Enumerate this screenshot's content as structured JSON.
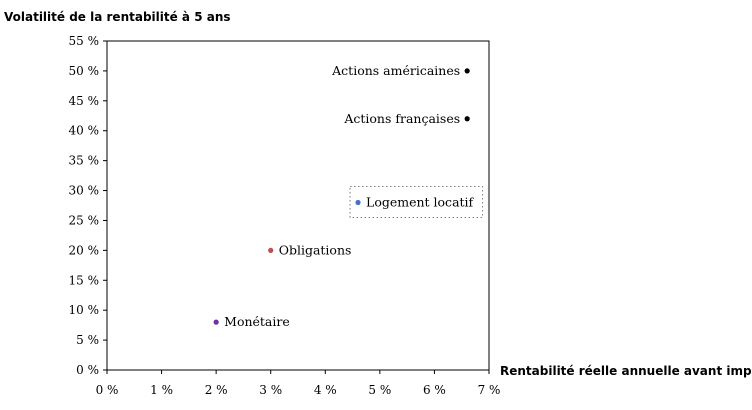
{
  "chart_data": {
    "type": "scatter",
    "ylabel": "Volatilité  de la rentabilité  à 5 ans",
    "xlabel": "Rentabilité  réelle annuelle avant impôts",
    "xlim": [
      0,
      7
    ],
    "ylim": [
      0,
      55
    ],
    "x_ticks": [
      0,
      1,
      2,
      3,
      4,
      5,
      6,
      7
    ],
    "y_ticks": [
      0,
      5,
      10,
      15,
      20,
      25,
      30,
      35,
      40,
      45,
      50,
      55
    ],
    "x_tick_labels": [
      "0 %",
      "1 %",
      "2 %",
      "3 %",
      "4 %",
      "5 %",
      "6 %",
      "7 %"
    ],
    "y_tick_labels": [
      "0 %",
      "5 %",
      "10 %",
      "15 %",
      "20 %",
      "25 %",
      "30 %",
      "35 %",
      "40 %",
      "45 %",
      "50 %",
      "55 %"
    ],
    "grid": false,
    "legend": "none",
    "points": [
      {
        "label": "Actions américaines",
        "x": 6.6,
        "y": 50,
        "color": "#000000"
      },
      {
        "label": "Actions françaises",
        "x": 6.6,
        "y": 42,
        "color": "#000000"
      },
      {
        "label": "Logement locatif",
        "x": 4.6,
        "y": 28,
        "color": "#4472c4",
        "boxed": true
      },
      {
        "label": "Obligations",
        "x": 3.0,
        "y": 20,
        "color": "#c0504d"
      },
      {
        "label": "Monétaire",
        "x": 2.0,
        "y": 8,
        "color": "#7030a0"
      }
    ]
  }
}
